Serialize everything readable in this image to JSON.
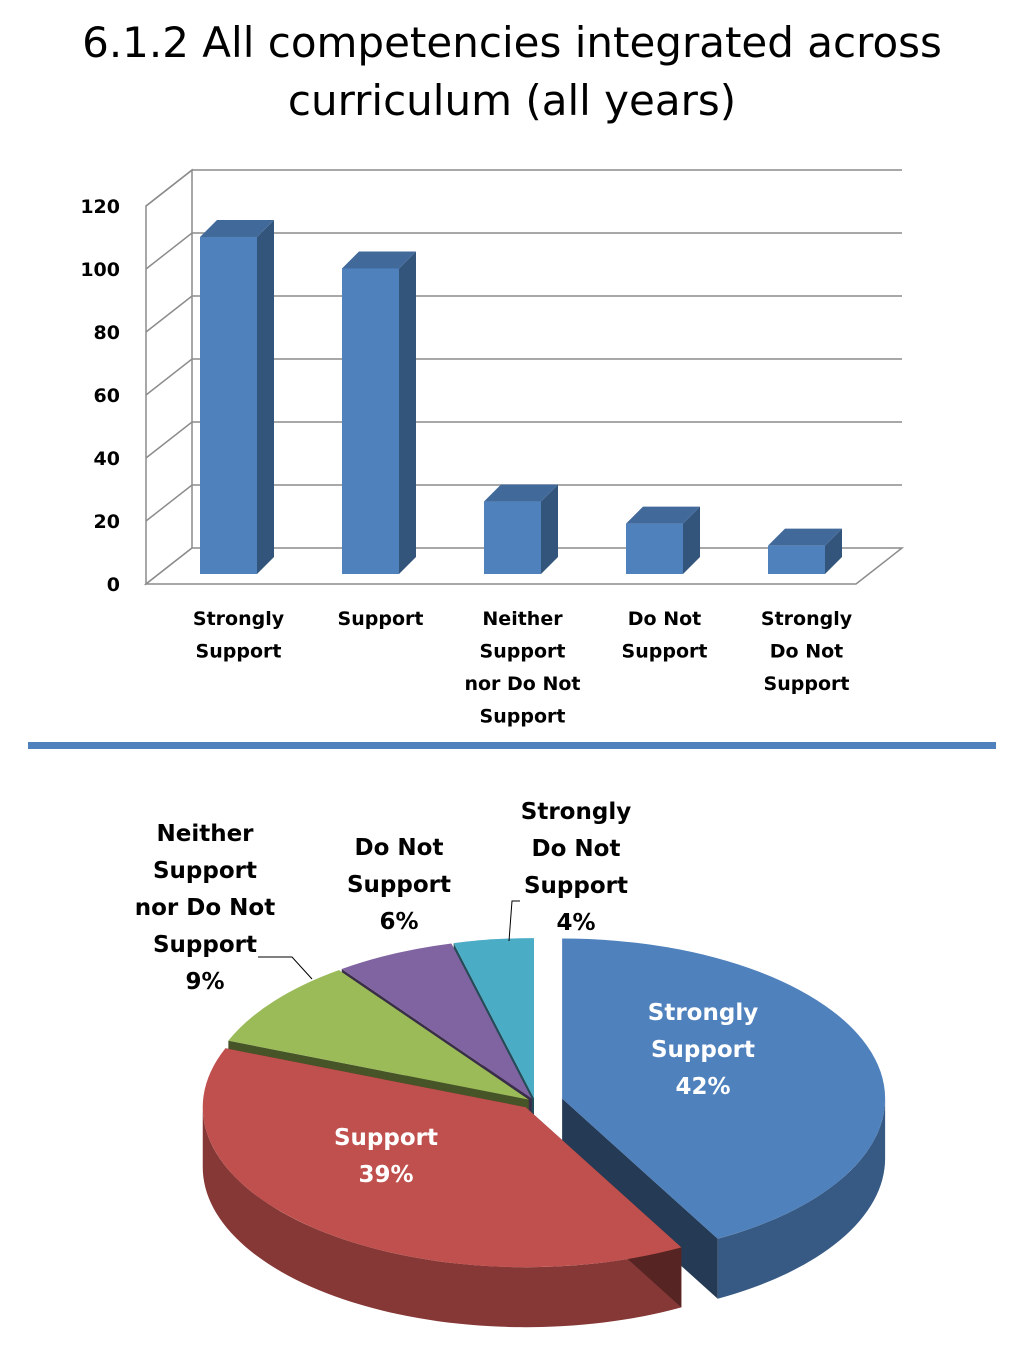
{
  "title_lines": [
    "6.1.2  All competencies integrated across",
    "curriculum (all years)"
  ],
  "chart_data": [
    {
      "type": "bar",
      "categories": [
        "Strongly Support",
        "Support",
        "Neither Support nor Do Not Support",
        "Do Not Support",
        "Strongly Do Not Support"
      ],
      "category_label_lines": [
        [
          "Strongly",
          "Support"
        ],
        [
          "Support"
        ],
        [
          "Neither",
          "Support",
          "nor Do Not",
          "Support"
        ],
        [
          "Do Not",
          "Support"
        ],
        [
          "Strongly",
          "Do Not",
          "Support"
        ]
      ],
      "values": [
        107,
        97,
        23,
        16,
        9
      ],
      "ylim": [
        0,
        120
      ],
      "yticks": [
        "0",
        "20",
        "40",
        "60",
        "80",
        "100",
        "120"
      ],
      "grid": true,
      "color": "#4F81BD",
      "legend": "none"
    },
    {
      "type": "pie",
      "labels": [
        "Strongly Support",
        "Support",
        "Neither Support nor Do Not Support",
        "Do Not Support",
        "Strongly Do Not Support"
      ],
      "label_lines": [
        [
          "Strongly",
          "Support"
        ],
        [
          "Support"
        ],
        [
          "Neither",
          "Support",
          "nor Do Not",
          "Support"
        ],
        [
          "Do Not",
          "Support"
        ],
        [
          "Strongly",
          "Do Not",
          "Support"
        ]
      ],
      "values": [
        42,
        39,
        9,
        6,
        4
      ],
      "percent_labels": [
        "42%",
        "39%",
        "9%",
        "6%",
        "4%"
      ],
      "colors": [
        "#4F81BD",
        "#C0504D",
        "#9BBB59",
        "#8064A2",
        "#4BACC6"
      ],
      "legend": "none"
    }
  ]
}
